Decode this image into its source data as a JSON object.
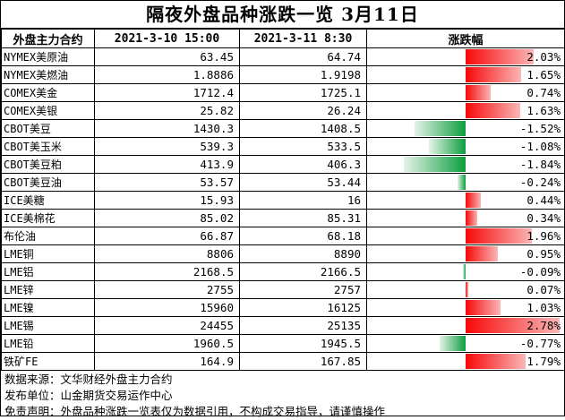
{
  "title": "隔夜外盘品种涨跌一览 3月11日",
  "headers": {
    "name": "外盘主力合约",
    "prev": "2021-3-10 15:00",
    "curr": "2021-3-11 8:30",
    "change": "涨跌幅"
  },
  "colors": {
    "up": "#f70808",
    "down": "#0d9e3f"
  },
  "rows": [
    {
      "name": "NYMEX美原油",
      "prev": "63.45",
      "curr": "64.74",
      "change": "2.03%",
      "pct": 2.03
    },
    {
      "name": "NYMEX美燃油",
      "prev": "1.8886",
      "curr": "1.9198",
      "change": "1.65%",
      "pct": 1.65
    },
    {
      "name": "COMEX美金",
      "prev": "1712.4",
      "curr": "1725.1",
      "change": "0.74%",
      "pct": 0.74
    },
    {
      "name": "COMEX美银",
      "prev": "25.82",
      "curr": "26.24",
      "change": "1.63%",
      "pct": 1.63
    },
    {
      "name": "CBOT美豆",
      "prev": "1430.3",
      "curr": "1408.5",
      "change": "-1.52%",
      "pct": -1.52
    },
    {
      "name": "CBOT美玉米",
      "prev": "539.3",
      "curr": "533.5",
      "change": "-1.08%",
      "pct": -1.08
    },
    {
      "name": "CBOT美豆粕",
      "prev": "413.9",
      "curr": "406.3",
      "change": "-1.84%",
      "pct": -1.84
    },
    {
      "name": "CBOT美豆油",
      "prev": "53.57",
      "curr": "53.44",
      "change": "-0.24%",
      "pct": -0.24
    },
    {
      "name": "ICE美糖",
      "prev": "15.93",
      "curr": "16",
      "change": "0.44%",
      "pct": 0.44
    },
    {
      "name": "ICE美棉花",
      "prev": "85.02",
      "curr": "85.31",
      "change": "0.34%",
      "pct": 0.34
    },
    {
      "name": "布伦油",
      "prev": "66.87",
      "curr": "68.18",
      "change": "1.96%",
      "pct": 1.96
    },
    {
      "name": "LME铜",
      "prev": "8806",
      "curr": "8890",
      "change": "0.95%",
      "pct": 0.95
    },
    {
      "name": "LME铝",
      "prev": "2168.5",
      "curr": "2166.5",
      "change": "-0.09%",
      "pct": -0.09
    },
    {
      "name": "LME锌",
      "prev": "2755",
      "curr": "2757",
      "change": "0.07%",
      "pct": 0.07
    },
    {
      "name": "LME镍",
      "prev": "15960",
      "curr": "16125",
      "change": "1.03%",
      "pct": 1.03
    },
    {
      "name": "LME锡",
      "prev": "24455",
      "curr": "25135",
      "change": "2.78%",
      "pct": 2.78
    },
    {
      "name": "LME铅",
      "prev": "1960.5",
      "curr": "1945.5",
      "change": "-0.77%",
      "pct": -0.77
    },
    {
      "name": "铁矿FE",
      "prev": "164.9",
      "curr": "167.85",
      "change": "1.79%",
      "pct": 1.79
    }
  ],
  "footer": [
    "数据来源：文华财经外盘主力合约",
    "发布单位：山金期货交易运作中心",
    "免责声明：外盘品种涨跌一览表仅为数据引用，不构成交易指导，请谨慎操作"
  ]
}
